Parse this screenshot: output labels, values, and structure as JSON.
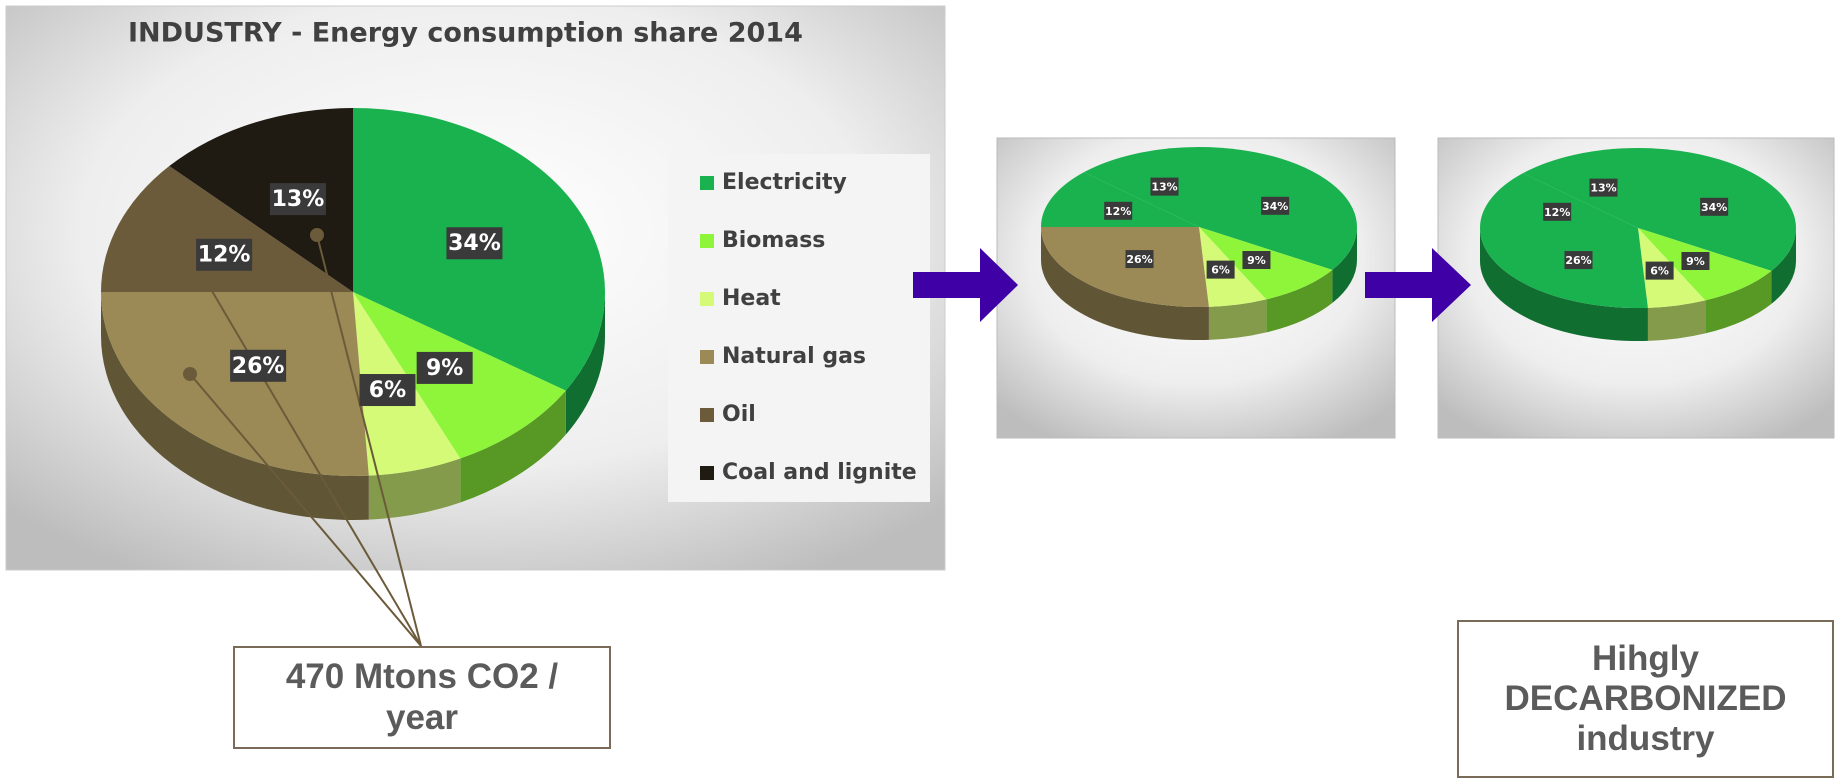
{
  "chart_data": [
    {
      "type": "pie",
      "title": "INDUSTRY - Energy consumption share 2014",
      "categories": [
        "Electricity",
        "Biomass",
        "Heat",
        "Natural gas",
        "Oil",
        "Coal and lignite"
      ],
      "values": [
        34,
        9,
        6,
        26,
        12,
        13
      ],
      "value_labels": [
        "34%",
        "9%",
        "6%",
        "26%",
        "12%",
        "13%"
      ],
      "colors": [
        "#19b24f",
        "#8ef53a",
        "#d4fa78",
        "#9b8a56",
        "#6b5b3a",
        "#1f1a12"
      ],
      "legend": "right"
    },
    {
      "type": "pie",
      "values": [
        34,
        9,
        6,
        26,
        12,
        13
      ],
      "value_labels": [
        "34%",
        "9%",
        "6%",
        "26%",
        "12%",
        "13%"
      ],
      "colors": [
        "#19b24f",
        "#8ef53a",
        "#d4fa78",
        "#9b8a56",
        "#19b24f",
        "#19b24f"
      ]
    },
    {
      "type": "pie",
      "values": [
        34,
        9,
        6,
        26,
        12,
        13
      ],
      "value_labels": [
        "34%",
        "9%",
        "6%",
        "26%",
        "12%",
        "13%"
      ],
      "colors": [
        "#19b24f",
        "#8ef53a",
        "#d4fa78",
        "#19b24f",
        "#19b24f",
        "#19b24f"
      ]
    }
  ],
  "annotations": [
    "470 Mtons CO2 / year",
    "Hihgly DECARBONIZED industry"
  ]
}
